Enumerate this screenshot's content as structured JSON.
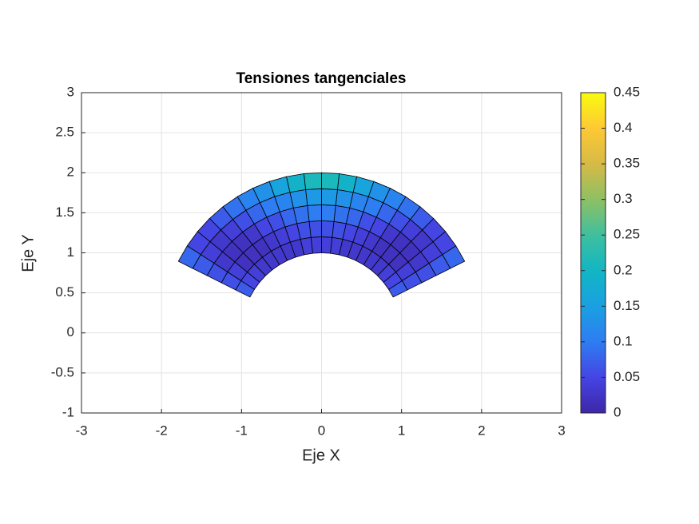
{
  "chart_data": {
    "type": "mesh",
    "title": "Tensiones tangenciales",
    "xlabel": "Eje X",
    "ylabel": "Eje Y",
    "xlim": [
      -3,
      3
    ],
    "ylim": [
      -1,
      3
    ],
    "xticks": [
      -3,
      -2,
      -1,
      0,
      1,
      2,
      3
    ],
    "yticks": [
      -1,
      -0.5,
      0,
      0.5,
      1,
      1.5,
      2,
      2.5,
      3
    ],
    "grid": true,
    "r_edges": [
      1,
      1.2,
      1.4,
      1.6,
      1.8,
      2
    ],
    "theta_edges": [
      26.57,
      32.91,
      39.26,
      45.6,
      51.94,
      58.29,
      64.63,
      70.97,
      77.31,
      83.66,
      90,
      96.34,
      102.69,
      109.03,
      115.37,
      121.71,
      128.06,
      134.4,
      140.74,
      147.09,
      153.43
    ],
    "values": [
      [
        0.07,
        0.05,
        0.04,
        0.03,
        0.03,
        0.03,
        0.03,
        0.03,
        0.04,
        0.04,
        0.04,
        0.04,
        0.03,
        0.03,
        0.03,
        0.03,
        0.03,
        0.04,
        0.05,
        0.07
      ],
      [
        0.06,
        0.04,
        0.02,
        0.02,
        0.02,
        0.03,
        0.04,
        0.05,
        0.06,
        0.06,
        0.06,
        0.06,
        0.05,
        0.04,
        0.03,
        0.02,
        0.02,
        0.02,
        0.04,
        0.06
      ],
      [
        0.06,
        0.03,
        0.02,
        0.02,
        0.03,
        0.05,
        0.06,
        0.08,
        0.09,
        0.1,
        0.1,
        0.09,
        0.08,
        0.06,
        0.05,
        0.03,
        0.02,
        0.02,
        0.03,
        0.06
      ],
      [
        0.07,
        0.04,
        0.03,
        0.04,
        0.06,
        0.08,
        0.1,
        0.11,
        0.13,
        0.14,
        0.14,
        0.13,
        0.11,
        0.1,
        0.08,
        0.06,
        0.04,
        0.03,
        0.04,
        0.07
      ],
      [
        0.08,
        0.05,
        0.05,
        0.07,
        0.09,
        0.11,
        0.13,
        0.16,
        0.19,
        0.21,
        0.21,
        0.19,
        0.16,
        0.13,
        0.11,
        0.09,
        0.07,
        0.05,
        0.05,
        0.08
      ]
    ],
    "clim": [
      0,
      0.45
    ],
    "cticks": [
      0,
      0.05,
      0.1,
      0.15,
      0.2,
      0.25,
      0.3,
      0.35,
      0.4,
      0.45
    ],
    "colormap": [
      "#3e26a8",
      "#4545e4",
      "#2e7df2",
      "#1aa0e2",
      "#12b6c3",
      "#40bf9e",
      "#8ec063",
      "#d6ba47",
      "#fec934",
      "#f9fb0e"
    ]
  }
}
